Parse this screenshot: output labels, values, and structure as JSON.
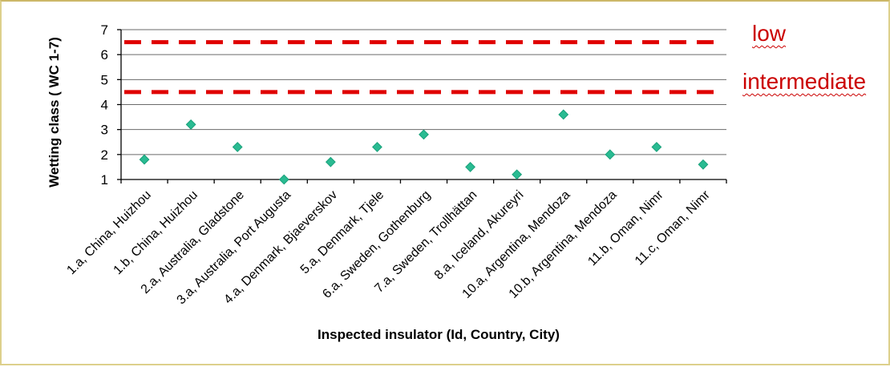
{
  "chart_data": {
    "type": "scatter",
    "title": "",
    "xlabel": "Inspected insulator (Id, Country, City)",
    "ylabel": "Wetting class ( WC 1-7)",
    "ylim": [
      1,
      7
    ],
    "yticks": [
      1,
      2,
      3,
      4,
      5,
      6,
      7
    ],
    "grid": true,
    "legend": "none",
    "categories": [
      "1.a, China, Huizhou",
      "1.b, China, Huizhou",
      "2.a, Australia, Gladstone",
      "3.a, Australia, Port Augusta",
      "4.a, Denmark, Bjaeverskov",
      "5.a, Denmark, Tjele",
      "6.a, Sweden, Gothenburg",
      "7.a, Sweden, Trollhättan",
      "8.a, Iceland, Akureyri",
      "10.a, Argentina, Mendoza",
      "10.b, Argentina, Mendoza",
      "11.b, Oman, Nimr",
      "11.c, Oman, Nimr"
    ],
    "series": [
      {
        "name": "Wetting class",
        "marker": "diamond",
        "values": [
          1.8,
          3.2,
          2.3,
          1.0,
          1.7,
          2.3,
          2.8,
          1.5,
          1.2,
          3.6,
          2.0,
          2.3,
          1.6
        ]
      }
    ],
    "reference_lines": [
      {
        "label": "low",
        "y": 6.5,
        "style": "dashed"
      },
      {
        "label": "intermediate",
        "y": 4.5,
        "style": "dashed"
      }
    ],
    "colors": {
      "marker_fill": "#2abb92",
      "marker_edge": "#18a07a",
      "gridline": "#6a6a6a",
      "axis": "#000000",
      "ref_line": "#e00000",
      "ref_text": "#cb0000",
      "frame_border": "#ddd08c"
    }
  }
}
